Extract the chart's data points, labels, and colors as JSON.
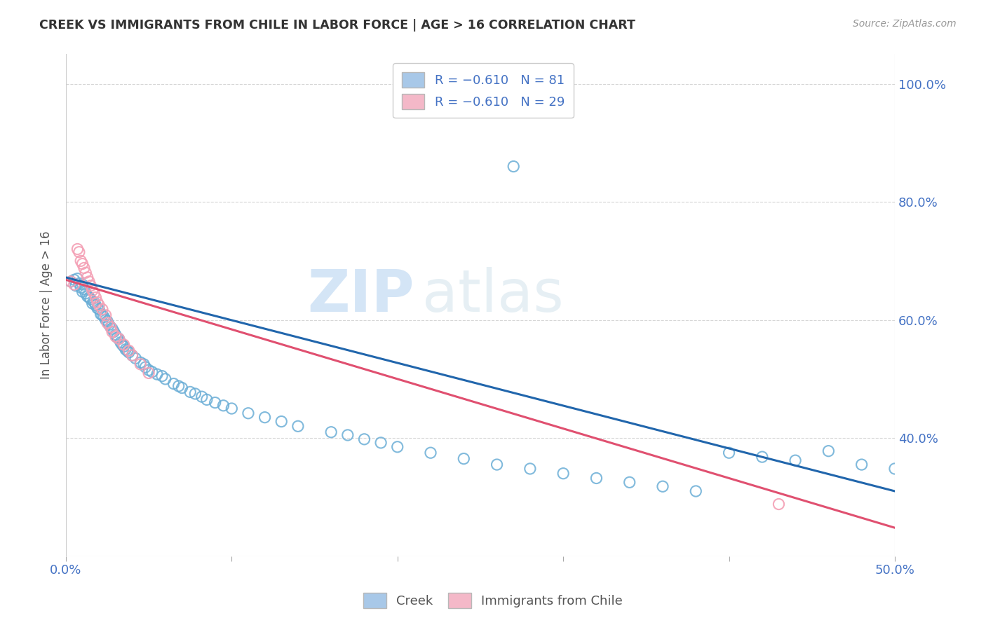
{
  "title": "CREEK VS IMMIGRANTS FROM CHILE IN LABOR FORCE | AGE > 16 CORRELATION CHART",
  "source": "Source: ZipAtlas.com",
  "ylabel": "In Labor Force | Age > 16",
  "xlim": [
    0.0,
    0.5
  ],
  "ylim": [
    0.2,
    1.05
  ],
  "watermark": "ZIPatlas",
  "creek_scatter_x": [
    0.003,
    0.005,
    0.006,
    0.007,
    0.008,
    0.009,
    0.01,
    0.01,
    0.011,
    0.012,
    0.013,
    0.014,
    0.015,
    0.016,
    0.017,
    0.018,
    0.019,
    0.02,
    0.021,
    0.022,
    0.023,
    0.024,
    0.025,
    0.026,
    0.027,
    0.028,
    0.029,
    0.03,
    0.031,
    0.032,
    0.033,
    0.034,
    0.035,
    0.036,
    0.037,
    0.038,
    0.04,
    0.042,
    0.045,
    0.047,
    0.048,
    0.05,
    0.052,
    0.055,
    0.058,
    0.06,
    0.065,
    0.068,
    0.07,
    0.075,
    0.078,
    0.082,
    0.085,
    0.09,
    0.095,
    0.1,
    0.11,
    0.12,
    0.13,
    0.14,
    0.16,
    0.17,
    0.18,
    0.19,
    0.2,
    0.22,
    0.24,
    0.26,
    0.28,
    0.3,
    0.32,
    0.34,
    0.36,
    0.38,
    0.4,
    0.42,
    0.44,
    0.46,
    0.48,
    0.5,
    0.27
  ],
  "creek_scatter_y": [
    0.665,
    0.668,
    0.658,
    0.67,
    0.662,
    0.655,
    0.648,
    0.66,
    0.652,
    0.645,
    0.64,
    0.638,
    0.635,
    0.628,
    0.63,
    0.625,
    0.62,
    0.618,
    0.61,
    0.608,
    0.605,
    0.6,
    0.598,
    0.592,
    0.588,
    0.585,
    0.58,
    0.575,
    0.57,
    0.568,
    0.562,
    0.558,
    0.555,
    0.55,
    0.548,
    0.545,
    0.54,
    0.535,
    0.528,
    0.525,
    0.52,
    0.515,
    0.512,
    0.508,
    0.505,
    0.5,
    0.492,
    0.488,
    0.485,
    0.478,
    0.475,
    0.47,
    0.465,
    0.46,
    0.455,
    0.45,
    0.442,
    0.435,
    0.428,
    0.42,
    0.41,
    0.405,
    0.398,
    0.392,
    0.385,
    0.375,
    0.365,
    0.355,
    0.348,
    0.34,
    0.332,
    0.325,
    0.318,
    0.31,
    0.375,
    0.368,
    0.362,
    0.378,
    0.355,
    0.348,
    0.86
  ],
  "chile_scatter_x": [
    0.003,
    0.005,
    0.007,
    0.008,
    0.009,
    0.01,
    0.011,
    0.012,
    0.013,
    0.014,
    0.015,
    0.016,
    0.017,
    0.018,
    0.019,
    0.02,
    0.022,
    0.024,
    0.025,
    0.027,
    0.028,
    0.03,
    0.032,
    0.035,
    0.038,
    0.04,
    0.045,
    0.05,
    0.43
  ],
  "chile_scatter_y": [
    0.665,
    0.66,
    0.72,
    0.715,
    0.7,
    0.695,
    0.688,
    0.68,
    0.672,
    0.665,
    0.658,
    0.65,
    0.645,
    0.638,
    0.63,
    0.625,
    0.618,
    0.608,
    0.595,
    0.588,
    0.58,
    0.572,
    0.568,
    0.558,
    0.548,
    0.54,
    0.525,
    0.51,
    0.288
  ],
  "creek_line_x": [
    0.0,
    0.5
  ],
  "creek_line_y": [
    0.672,
    0.31
  ],
  "chile_line_x": [
    0.0,
    0.5
  ],
  "chile_line_y": [
    0.668,
    0.248
  ],
  "creek_color": "#6baed6",
  "chile_color": "#f4a0b5",
  "creek_line_color": "#2166ac",
  "chile_line_color": "#e05070",
  "background_color": "#ffffff",
  "grid_color": "#cccccc"
}
